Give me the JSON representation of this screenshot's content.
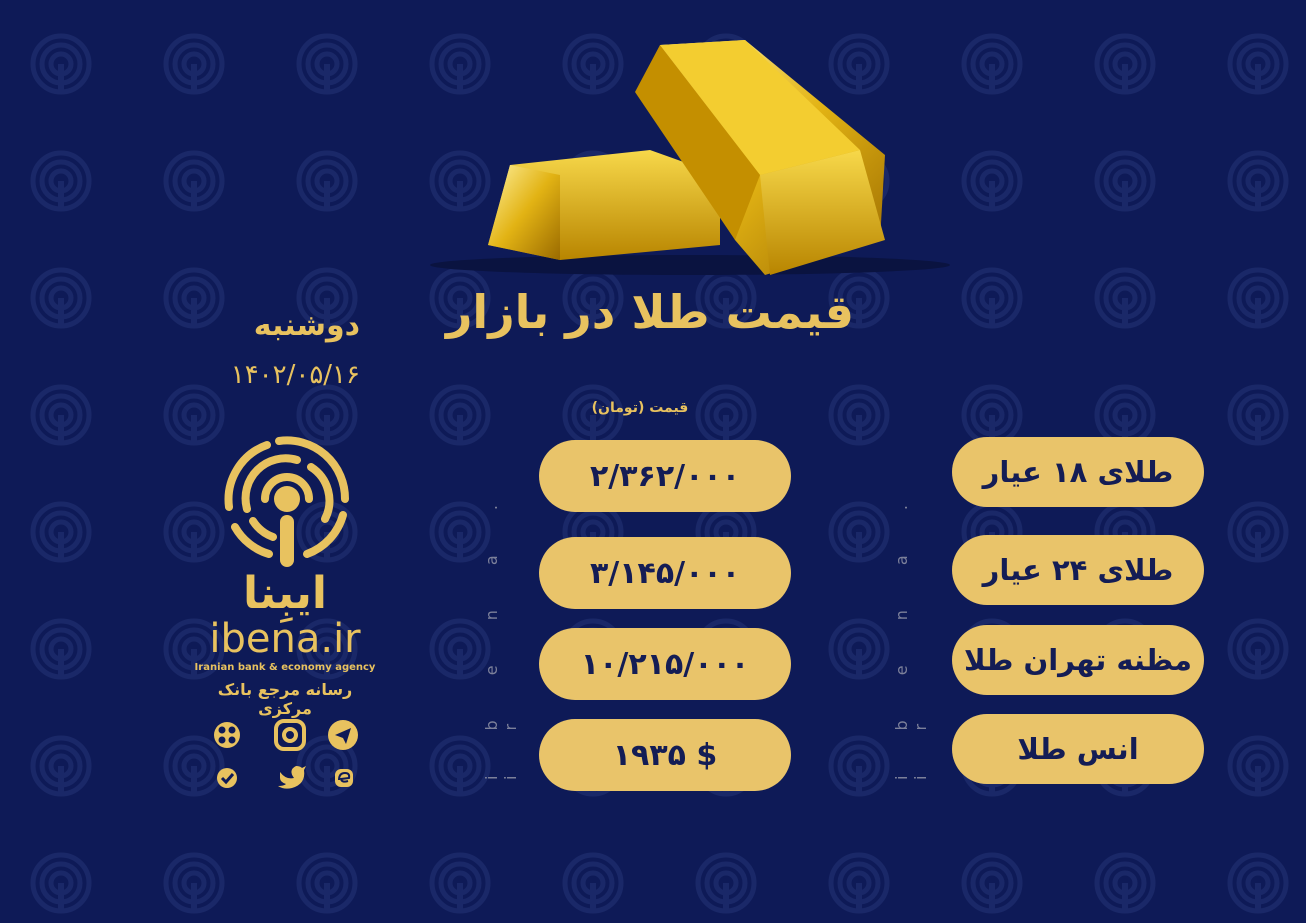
{
  "title": "قیمت طلا در بازار",
  "day": "دوشنبه",
  "date": "۱۴۰۲/۰۵/۱۶",
  "price_unit_label": "قیمت (تومان)",
  "watermark_text": "i b e n a . i r",
  "rows": [
    {
      "label": "طلای ۱۸ عیار",
      "price": "۲/۳۶۲/۰۰۰"
    },
    {
      "label": "طلای ۲۴ عیار",
      "price": "۳/۱۴۵/۰۰۰"
    },
    {
      "label": "مظنه تهران طلا",
      "price": "۱۰/۲۱۵/۰۰۰"
    },
    {
      "label": "انس طلا",
      "price": "۱۹۳۵ $"
    }
  ],
  "brand": {
    "name_fa": "ایبِنا",
    "name_en": "ibena.ir",
    "tagline_en": "Iranian bank & economy agency",
    "tagline_fa": "رسانه مرجع بانک مرکزی"
  },
  "social_icons": [
    "aparat-icon",
    "instagram-icon",
    "telegram-icon",
    "verified-icon",
    "twitter-icon",
    "eitaa-icon"
  ],
  "colors": {
    "background": "#0e1a57",
    "gold": "#e9c46a",
    "text_dark": "#141d55"
  }
}
